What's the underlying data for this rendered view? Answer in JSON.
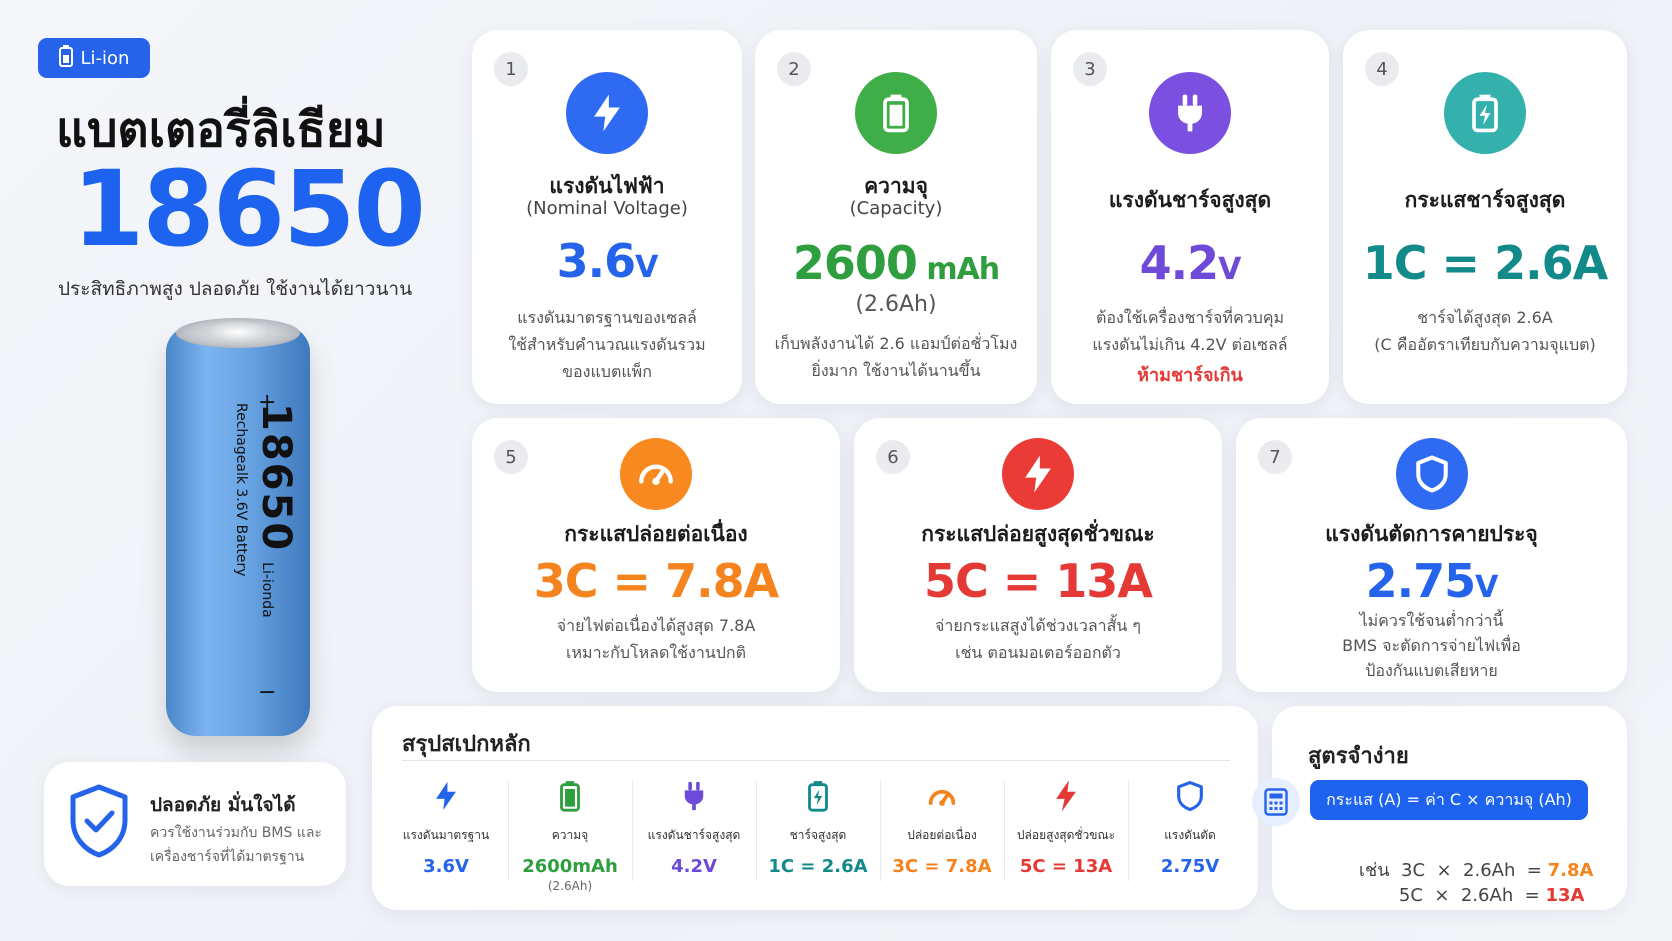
{
  "hero": {
    "badge": "Li-ion",
    "title": "แบตเตอรี่ลิเธียม",
    "model": "18650",
    "tagline": "ประสิทธิภาพสูง ปลอดภัย ใช้งานได้ยาวนาน"
  },
  "battery_label": {
    "plus": "+",
    "minus": "−",
    "model": "18650",
    "type": "Li-ionda",
    "desc": "Rechagealk 3.6V Battery"
  },
  "safety": {
    "title": "ปลอดภัย มั่นใจได้",
    "line1": "ควรใช้งานร่วมกับ BMS และ",
    "line2": "เครื่องชาร์จที่ได้มาตรฐาน"
  },
  "cards": [
    {
      "num": "1",
      "title": "แรงดันไฟฟ้า",
      "subtitle": "(Nominal Voltage)",
      "value": "3.6",
      "unit": "V",
      "desc1": "แรงดันมาตรฐานของเซลล์",
      "desc2": "ใช้สำหรับคำนวณแรงดันรวม",
      "desc3": "ของแบตแพ็ก",
      "color": "#2563eb",
      "icon": "lightning-icon"
    },
    {
      "num": "2",
      "title": "ความจุ",
      "subtitle": "(Capacity)",
      "value": "2600",
      "unit": " mAh",
      "value2": "(2.6Ah)",
      "desc1": "เก็บพลังงานได้ 2.6 แอมป์ต่อชั่วโมง",
      "desc2": "ยิ่งมาก ใช้งานได้นานขึ้น",
      "color": "#2e9e3e",
      "icon": "battery-icon"
    },
    {
      "num": "3",
      "title": "แรงดันชาร์จสูงสุด",
      "value": "4.2",
      "unit": "V",
      "desc1": "ต้องใช้เครื่องชาร์จที่ควบคุม",
      "desc2": "แรงดันไม่เกิน 4.2V ต่อเซลล์",
      "warning": "ห้ามชาร์จเกิน",
      "color": "#6d4ad8",
      "icon": "plug-icon"
    },
    {
      "num": "4",
      "title": "กระแสชาร์จสูงสุด",
      "value": "1C = 2.6",
      "unit": "A",
      "desc1": "ชาร์จได้สูงสุด 2.6A",
      "desc2": "(C คืออัตราเทียบกับความจุแบต)",
      "color": "#138a8a",
      "icon": "charging-battery-icon"
    },
    {
      "num": "5",
      "title": "กระแสปล่อยต่อเนื่อง",
      "value": "3C = 7.8A",
      "desc1": "จ่ายไฟต่อเนื่องได้สูงสุด 7.8A",
      "desc2": "เหมาะกับโหลดใช้งานปกติ",
      "color": "#f5841f",
      "icon": "speedometer-icon"
    },
    {
      "num": "6",
      "title": "กระแสปล่อยสูงสุดชั่วขณะ",
      "value": "5C = 13A",
      "desc1": "จ่ายกระแสสูงได้ช่วงเวลาสั้น ๆ",
      "desc2": "เช่น ตอนมอเตอร์ออกตัว",
      "color": "#e53935",
      "icon": "lightning-burst-icon"
    },
    {
      "num": "7",
      "title": "แรงดันตัดการคายประจุ",
      "value": "2.75",
      "unit": "V",
      "desc1": "ไม่ควรใช้จนต่ำกว่านี้",
      "desc2": "BMS จะตัดการจ่ายไฟเพื่อ",
      "desc3": "ป้องกันแบตเสียหาย",
      "color": "#2563eb",
      "icon": "shield-icon"
    }
  ],
  "summary": {
    "title": "สรุปสเปกหลัก",
    "items": [
      {
        "label": "แรงดันมาตรฐาน",
        "value": "3.6V",
        "color": "#2563eb",
        "icon": "lightning-icon"
      },
      {
        "label": "ความจุ",
        "value": "2600mAh",
        "sub": "(2.6Ah)",
        "color": "#2e9e3e",
        "icon": "battery-icon"
      },
      {
        "label": "แรงดันชาร์จสูงสุด",
        "value": "4.2V",
        "color": "#6d4ad8",
        "icon": "plug-icon"
      },
      {
        "label": "ชาร์จสูงสุด",
        "value": "1C = 2.6A",
        "color": "#138a8a",
        "icon": "charging-battery-icon"
      },
      {
        "label": "ปล่อยต่อเนื่อง",
        "value": "3C = 7.8A",
        "color": "#f5841f",
        "icon": "speedometer-icon"
      },
      {
        "label": "ปล่อยสูงสุดชั่วขณะ",
        "value": "5C = 13A",
        "color": "#e53935",
        "icon": "lightning-burst-icon"
      },
      {
        "label": "แรงดันตัด",
        "value": "2.75V",
        "color": "#2563eb",
        "icon": "shield-icon"
      }
    ]
  },
  "formula": {
    "title": "สูตรจำง่าย",
    "formula": "กระแส (A) = ค่า C × ความจุ (Ah)",
    "example_prefix": "เช่น",
    "ex1": "3C  ×  2.6Ah  =",
    "ex1_result": "7.8A",
    "ex2": "5C  ×  2.6Ah  =",
    "ex2_result": "13A",
    "ex1_color": "#f5841f",
    "ex2_color": "#e53935"
  }
}
